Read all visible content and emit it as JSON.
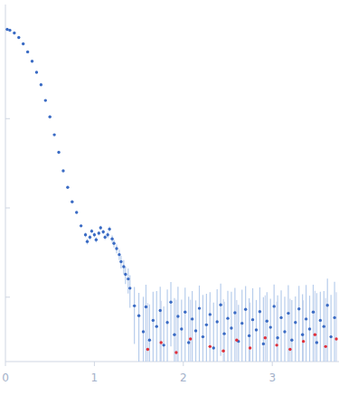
{
  "chart_data": {
    "type": "scatter",
    "log": "y",
    "tick_labels": "x",
    "marker": "circle",
    "xlim": [
      0,
      3.75
    ],
    "xticks": [
      0,
      1,
      2,
      3
    ],
    "ylim": [
      0.00019,
      1.9
    ],
    "yticks": [
      0.001,
      0.01,
      0.1,
      1
    ],
    "series": [
      {
        "color": "#3a6bc4",
        "x": [
          0.02,
          0.05,
          0.1,
          0.15,
          0.2,
          0.25,
          0.3,
          0.35,
          0.4,
          0.45,
          0.5,
          0.55,
          0.6,
          0.65,
          0.7,
          0.75,
          0.8,
          0.85,
          0.9,
          0.92,
          0.95,
          0.97,
          1.0,
          1.02,
          1.05,
          1.07,
          1.1,
          1.12,
          1.15,
          1.17,
          1.2,
          1.22,
          1.25,
          1.28,
          1.3,
          1.33,
          1.35,
          1.38,
          1.4,
          1.45,
          1.5,
          1.55,
          1.58,
          1.62,
          1.66,
          1.7,
          1.74,
          1.78,
          1.82,
          1.86,
          1.9,
          1.94,
          1.98,
          2.02,
          2.06,
          2.1,
          2.14,
          2.18,
          2.22,
          2.26,
          2.3,
          2.34,
          2.38,
          2.42,
          2.46,
          2.5,
          2.54,
          2.58,
          2.62,
          2.66,
          2.7,
          2.74,
          2.78,
          2.82,
          2.86,
          2.9,
          2.94,
          2.98,
          3.02,
          3.06,
          3.1,
          3.14,
          3.18,
          3.22,
          3.26,
          3.3,
          3.34,
          3.38,
          3.42,
          3.46,
          3.5,
          3.54,
          3.58,
          3.62,
          3.66,
          3.7
        ],
        "values": [
          1.0,
          0.98,
          0.91,
          0.81,
          0.69,
          0.56,
          0.44,
          0.33,
          0.24,
          0.16,
          0.105,
          0.066,
          0.042,
          0.026,
          0.017,
          0.0117,
          0.0089,
          0.0063,
          0.005,
          0.0042,
          0.0047,
          0.0055,
          0.005,
          0.0044,
          0.0052,
          0.006,
          0.0054,
          0.0047,
          0.005,
          0.0058,
          0.0045,
          0.004,
          0.0035,
          0.003,
          0.0025,
          0.0022,
          0.0018,
          0.0016,
          0.00126,
          0.0008,
          0.00062,
          0.00041,
          0.00078,
          0.00033,
          0.00055,
          0.00047,
          0.00071,
          0.00029,
          0.00052,
          0.00088,
          0.00038,
          0.00061,
          0.00044,
          0.00068,
          0.00031,
          0.00057,
          0.00042,
          0.00075,
          0.00036,
          0.00049,
          0.00064,
          0.00027,
          0.00053,
          0.00082,
          0.00039,
          0.00058,
          0.00045,
          0.00067,
          0.00032,
          0.00051,
          0.00073,
          0.00037,
          0.00056,
          0.00043,
          0.00069,
          0.0003,
          0.00054,
          0.00046,
          0.00079,
          0.00035,
          0.00059,
          0.00041,
          0.00066,
          0.00033,
          0.00052,
          0.00074,
          0.00038,
          0.00057,
          0.00044,
          0.00068,
          0.00031,
          0.00055,
          0.00047,
          0.00081,
          0.00036,
          0.00059
        ],
        "errors": [
          0.01,
          0.01,
          0.009,
          0.008,
          0.007,
          0.006,
          0.004,
          0.003,
          0.002,
          0.0015,
          0.001,
          0.0007,
          0.0005,
          0.0003,
          0.0002,
          0.00015,
          0.0002,
          0.0002,
          0.0003,
          0.0003,
          0.0003,
          0.0003,
          0.0003,
          0.0003,
          0.0003,
          0.0003,
          0.0003,
          0.0003,
          0.0004,
          0.0004,
          0.0004,
          0.0004,
          0.0004,
          0.0004,
          0.0004,
          0.0004,
          0.0004,
          0.0005,
          0.0005,
          0.0005,
          0.0005,
          0.0006,
          0.0006,
          0.0005,
          0.0006,
          0.0007,
          0.0006,
          0.0005,
          0.0007,
          0.0006,
          0.0006,
          0.0007,
          0.0005,
          0.0006,
          0.0007,
          0.0006,
          0.0005,
          0.0006,
          0.0007,
          0.0006,
          0.0005,
          0.0006,
          0.0007,
          0.0006,
          0.0005,
          0.0006,
          0.0007,
          0.0006,
          0.0005,
          0.0007,
          0.0006,
          0.0006,
          0.0007,
          0.0005,
          0.0006,
          0.0007,
          0.0006,
          0.0005,
          0.0006,
          0.0007,
          0.0006,
          0.0006,
          0.0007,
          0.0006,
          0.0005,
          0.0006,
          0.0007,
          0.0008,
          0.0006,
          0.0007,
          0.0008,
          0.0006,
          0.0007,
          0.0008,
          0.0007,
          0.0009
        ]
      },
      {
        "color": "#e0303a",
        "marker": "circle",
        "x": [
          1.6,
          1.75,
          1.92,
          2.08,
          2.3,
          2.45,
          2.6,
          2.75,
          2.92,
          3.05,
          3.2,
          3.35,
          3.48,
          3.6,
          3.72
        ],
        "values": [
          0.00026,
          0.00031,
          0.00024,
          0.00034,
          0.00028,
          0.00025,
          0.00033,
          0.00027,
          0.00035,
          0.00029,
          0.00026,
          0.00032,
          0.00038,
          0.00028,
          0.00034
        ],
        "errors": [
          0.0006,
          0.0006,
          0.0007,
          0.0006,
          0.0006,
          0.0007,
          0.0006,
          0.0006,
          0.0007,
          0.0006,
          0.0007,
          0.0006,
          0.0008,
          0.0007,
          0.0008
        ]
      }
    ]
  }
}
